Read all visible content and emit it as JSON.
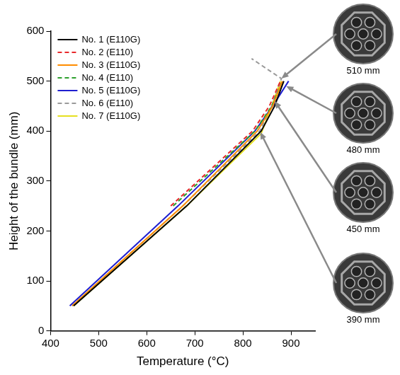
{
  "chart_data": {
    "type": "line",
    "x_label": "Temperature (°C)",
    "y_label": "Height of the bundle (mm)",
    "xlim": [
      400,
      950
    ],
    "xticks": [
      400,
      500,
      600,
      700,
      800,
      900
    ],
    "ylim": [
      0,
      600
    ],
    "yticks": [
      0,
      100,
      200,
      300,
      400,
      500,
      600
    ],
    "grid": false,
    "legend": "upper left",
    "series": [
      {
        "name": "No. 1 (E110G)",
        "color": "#000000",
        "line_style": "solid",
        "x": [
          448,
          683,
          838,
          866,
          885
        ],
        "values": [
          50,
          250,
          400,
          450,
          500
        ]
      },
      {
        "name": "No. 2 (E110)",
        "color": "#e8282b",
        "line_style": "dashed",
        "x": [
          650,
          820,
          855,
          878
        ],
        "values": [
          250,
          400,
          450,
          500
        ]
      },
      {
        "name": "No. 3 (E110G)",
        "color": "#ff8c00",
        "line_style": "solid",
        "x": [
          445,
          675,
          830,
          862,
          882
        ],
        "values": [
          50,
          250,
          400,
          450,
          500
        ]
      },
      {
        "name": "No. 4 (E110)",
        "color": "#2ca02c",
        "line_style": "dashed",
        "x": [
          655,
          825,
          860,
          882
        ],
        "values": [
          250,
          400,
          450,
          500
        ]
      },
      {
        "name": "No. 5 (E110G)",
        "color": "#1f1fd0",
        "line_style": "solid",
        "x": [
          440,
          665,
          825,
          862,
          895
        ],
        "values": [
          50,
          250,
          400,
          450,
          500
        ]
      },
      {
        "name": "No. 6 (E110)",
        "color": "#9a9a9a",
        "line_style": "dashed",
        "x": [
          445,
          675,
          835,
          860,
          880,
          818
        ],
        "values": [
          50,
          250,
          400,
          450,
          505,
          545
        ]
      },
      {
        "name": "No. 7 (E110G)",
        "color": "#e6e020",
        "line_style": "solid",
        "x": [
          448,
          683,
          838,
          860,
          878
        ],
        "values": [
          50,
          250,
          395,
          450,
          500
        ]
      }
    ],
    "annotations": [
      {
        "label": "510 mm",
        "x": 880,
        "y": 505
      },
      {
        "label": "480 mm",
        "x": 890,
        "y": 490
      },
      {
        "label": "450 mm",
        "x": 866,
        "y": 460
      },
      {
        "label": "390 mm",
        "x": 836,
        "y": 398
      }
    ]
  }
}
